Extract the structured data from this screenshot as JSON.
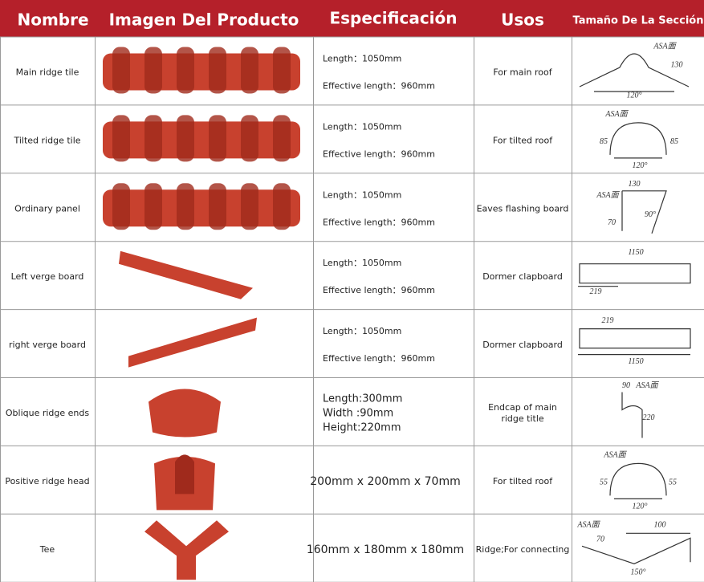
{
  "header": [
    "Nombre",
    "Imagen Del Producto",
    "Especificación",
    "Usos",
    "Tamaño De La Sección"
  ],
  "rows": [
    {
      "name": "Main ridge tile",
      "spec": [
        "Length：1050mm",
        "Effective length：960mm"
      ],
      "use": [
        "For main roof"
      ],
      "section_labels": [
        "ASA面",
        "130",
        "120°"
      ]
    },
    {
      "name": "Tilted ridge tile",
      "spec": [
        "Length：1050mm",
        "Effective length：960mm"
      ],
      "use": [
        "For tilted roof"
      ],
      "section_labels": [
        "ASA面",
        "85",
        "85",
        "120°"
      ]
    },
    {
      "name": "Ordinary panel",
      "spec": [
        "Length：1050mm",
        "Effective length：960mm"
      ],
      "use": [
        "Eaves flashing board"
      ],
      "section_labels": [
        "130",
        "ASA面",
        "70",
        "90°"
      ]
    },
    {
      "name": "Left verge board",
      "spec": [
        "Length：1050mm",
        "Effective length：960mm"
      ],
      "use": [
        "Dormer clapboard"
      ],
      "section_labels": [
        "1150",
        "219"
      ]
    },
    {
      "name": "right verge board",
      "spec": [
        "Length：1050mm",
        "Effective length：960mm"
      ],
      "use": [
        "Dormer clapboard"
      ],
      "section_labels": [
        "219",
        "1150"
      ]
    },
    {
      "name": "Oblique ridge ends",
      "spec": [
        "Length:300mm",
        "Width :90mm",
        "Height:220mm"
      ],
      "use": [
        "Endcap of main",
        "ridge title"
      ],
      "section_labels": [
        "90",
        "ASA面",
        "220"
      ]
    },
    {
      "name": "Positive ridge head",
      "spec": [
        "200mm x 200mm x 70mm"
      ],
      "use": [
        "For tilted roof"
      ],
      "section_labels": [
        "ASA面",
        "55",
        "55",
        "120°"
      ]
    },
    {
      "name": "Tee",
      "spec": [
        "160mm x 180mm x 180mm"
      ],
      "use": [
        "Ridge;For connecting"
      ],
      "section_labels": [
        "ASA面",
        "100",
        "70",
        "150°"
      ]
    }
  ]
}
